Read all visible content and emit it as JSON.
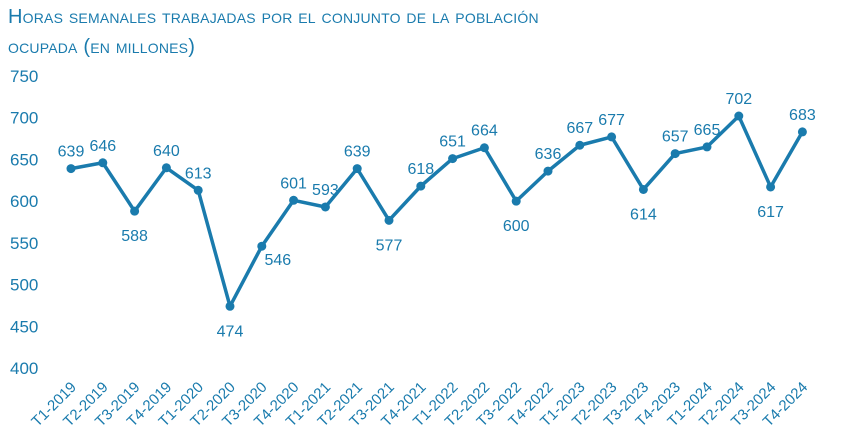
{
  "chart_data": {
    "type": "line",
    "title_line1": "Horas semanales trabajadas por el conjunto de la población",
    "title_line2": "ocupada (en millones)",
    "xlabel": "",
    "ylabel": "",
    "ylim": [
      400,
      750
    ],
    "yticks": [
      400,
      450,
      500,
      550,
      600,
      650,
      700,
      750
    ],
    "grid": false,
    "categories": [
      "T1-2019",
      "T2-2019",
      "T3-2019",
      "T4-2019",
      "T1-2020",
      "T2-2020",
      "T3-2020",
      "T4-2020",
      "T1-2021",
      "T2-2021",
      "T3-2021",
      "T4-2021",
      "T1-2022",
      "T2-2022",
      "T3-2022",
      "T4-2022",
      "T1-2023",
      "T2-2023",
      "T3-2023",
      "T4-2023",
      "T1-2024",
      "T2-2024",
      "T3-2024",
      "T4-2024"
    ],
    "values": [
      639,
      646,
      588,
      640,
      613,
      474,
      546,
      601,
      593,
      639,
      577,
      618,
      651,
      664,
      600,
      636,
      667,
      677,
      614,
      657,
      665,
      702,
      617,
      683
    ],
    "label_positions": [
      "above",
      "above",
      "below",
      "above",
      "above",
      "below",
      "right",
      "above",
      "above",
      "above",
      "below",
      "above",
      "above",
      "above",
      "below",
      "above",
      "above",
      "above",
      "below",
      "above",
      "above",
      "above",
      "below",
      "above"
    ],
    "line_color": "#1a7bad",
    "text_color": "#1a7bad"
  }
}
